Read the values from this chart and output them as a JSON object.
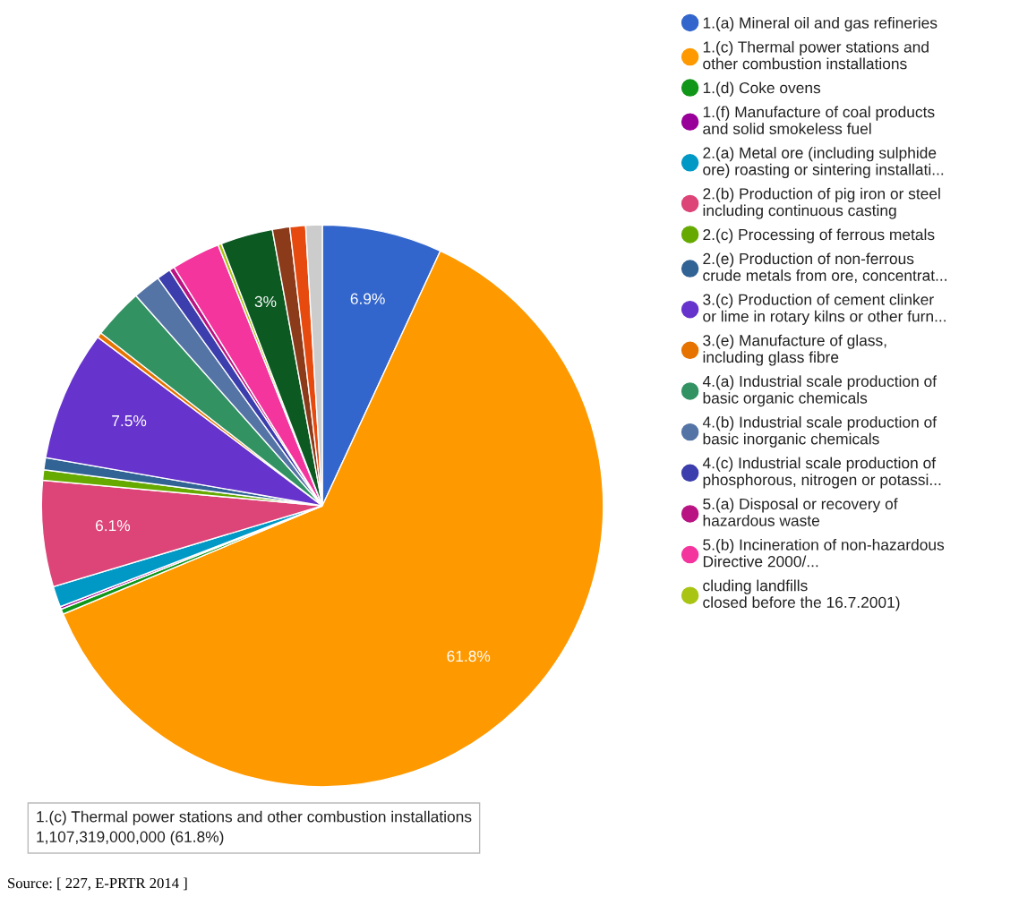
{
  "chart_data": {
    "type": "pie",
    "categories": [
      "1.(a) Mineral oil and gas refineries",
      "1.(c) Thermal power stations and\nother combustion installations",
      "1.(d) Coke ovens",
      "1.(f) Manufacture of coal products\nand solid smokeless fuel",
      "2.(a) Metal ore (including sulphide\nore) roasting or sintering installati...",
      "2.(b) Production of pig iron or steel\nincluding continuous casting",
      "2.(c) Processing of ferrous metals",
      "2.(e) Production of non-ferrous\ncrude metals from ore, concentrat...",
      "3.(c) Production of cement clinker\nor lime in rotary kilns or other furn...",
      "3.(e) Manufacture of glass,\nincluding glass fibre",
      "4.(a) Industrial scale production of\nbasic organic chemicals",
      "4.(b) Industrial scale production of\nbasic inorganic chemicals",
      "4.(c) Industrial scale production of\nphosphorous, nitrogen or potassi...",
      "5.(a) Disposal or recovery of\nhazardous waste",
      "5.(b) Incineration of non-hazardous\nDirective 2000/...",
      "cluding landfills\nclosed before the 16.7.2001)",
      null,
      null,
      null,
      null
    ],
    "values": [
      6.9,
      61.8,
      0.3,
      0.15,
      1.2,
      6.1,
      0.6,
      0.7,
      7.5,
      0.3,
      2.9,
      1.6,
      0.8,
      0.3,
      2.8,
      0.2,
      3,
      1.0,
      0.9,
      0.95
    ],
    "colors": [
      "#3366cc",
      "#ff9900",
      "#109618",
      "#990099",
      "#0099c6",
      "#dd4477",
      "#66aa00",
      "#316395",
      "#6633cc",
      "#e67300",
      "#329262",
      "#5574a6",
      "#3b3eac",
      "#b91383",
      "#f4359e",
      "#a9c413",
      "#0c5922",
      "#8b3a1a",
      "#e64a0e",
      "#cccccc"
    ],
    "value_labels": [
      "6.9%",
      "61.8%",
      null,
      null,
      null,
      "6.1%",
      null,
      null,
      "7.5%",
      null,
      null,
      null,
      null,
      null,
      null,
      null,
      "3%",
      null,
      null,
      null
    ],
    "legend": "right",
    "annotations": [
      "1.(c) Thermal power stations and other combustion installations\n1,107,319,000,000 (61.8%)",
      "Source: [ 227, E-PRTR 2014 ]"
    ]
  }
}
